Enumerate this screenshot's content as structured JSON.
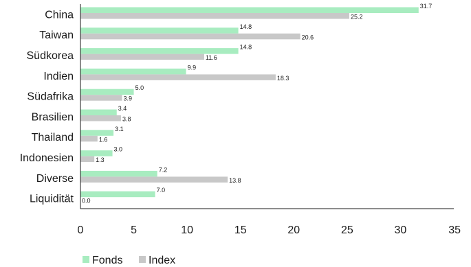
{
  "chart_data": {
    "type": "bar",
    "orientation": "horizontal",
    "categories": [
      "China",
      "Taiwan",
      "Südkorea",
      "Indien",
      "Südafrika",
      "Brasilien",
      "Thailand",
      "Indonesien",
      "Diverse",
      "Liquidität"
    ],
    "series": [
      {
        "name": "Fonds",
        "values": [
          31.7,
          14.8,
          14.8,
          9.9,
          5.0,
          3.4,
          3.1,
          3.0,
          7.2,
          7.0
        ],
        "labels": [
          "31.7",
          "14.8",
          "14.8",
          "9.9",
          "5.0",
          "3.4",
          "3.1",
          "3.0",
          "7.2",
          "7.0"
        ],
        "color": "#a8ecc0"
      },
      {
        "name": "Index",
        "values": [
          25.2,
          20.6,
          11.6,
          18.3,
          3.9,
          3.8,
          1.6,
          1.3,
          13.8,
          0.0
        ],
        "labels": [
          "25.2",
          "20.6",
          "11.6",
          "18.3",
          "3.9",
          "3.8",
          "1.6",
          "1.3",
          "13.8",
          "0.0"
        ],
        "color": "#c8c8c8"
      }
    ],
    "xlim": [
      0,
      35
    ],
    "xticks": [
      0,
      5,
      10,
      15,
      20,
      25,
      30,
      35
    ],
    "tick_labels": [
      "0",
      "5",
      "10",
      "15",
      "20",
      "25",
      "30",
      "35"
    ],
    "grid": false,
    "legend": {
      "position": "bottom-left"
    }
  }
}
